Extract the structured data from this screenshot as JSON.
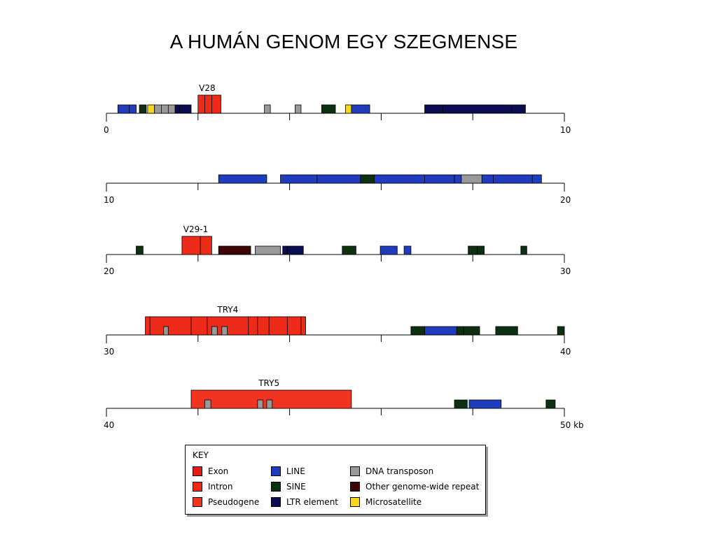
{
  "title": "A HUMÁN GENOM EGY SZEGMENSE",
  "legend": {
    "title": "KEY",
    "items": [
      {
        "key": "exon",
        "label": "Exon",
        "color": "#e01c14"
      },
      {
        "key": "line",
        "label": "LINE",
        "color": "#1f3cbf"
      },
      {
        "key": "dna",
        "label": "DNA transposon",
        "color": "#999999"
      },
      {
        "key": "intron",
        "label": "Intron",
        "color": "#ee2a18"
      },
      {
        "key": "sine",
        "label": "SINE",
        "color": "#0c3010"
      },
      {
        "key": "other",
        "label": "Other genome-wide repeat",
        "color": "#3c0606"
      },
      {
        "key": "pseudogene",
        "label": "Pseudogene",
        "color": "#f03420"
      },
      {
        "key": "ltr",
        "label": "LTR element",
        "color": "#0a0d52"
      },
      {
        "key": "micro",
        "label": "Microsatellite",
        "color": "#f5d81a"
      }
    ]
  },
  "rows": [
    {
      "start": 0,
      "end": 10,
      "end_label": "10",
      "gene": {
        "label": "V28",
        "at": 2.2
      },
      "features": [
        {
          "type": "line",
          "start": 0.25,
          "end": 0.65
        },
        {
          "type": "sine",
          "start": 0.72,
          "end": 0.87
        },
        {
          "type": "micro",
          "start": 0.9,
          "end": 1.05
        },
        {
          "type": "dna",
          "start": 1.05,
          "end": 1.5
        },
        {
          "type": "ltr",
          "start": 1.5,
          "end": 1.85
        },
        {
          "type": "intron",
          "start": 2.0,
          "end": 2.5,
          "tall": true
        },
        {
          "type": "dna",
          "start": 3.45,
          "end": 3.58
        },
        {
          "type": "dna",
          "start": 4.12,
          "end": 4.25
        },
        {
          "type": "sine",
          "start": 4.7,
          "end": 5.0
        },
        {
          "type": "micro",
          "start": 5.22,
          "end": 5.35
        },
        {
          "type": "line",
          "start": 5.35,
          "end": 5.75
        },
        {
          "type": "ltr",
          "start": 6.95,
          "end": 9.15
        }
      ],
      "dividers": [
        0.5,
        1.2,
        1.35,
        1.6,
        2.15,
        2.3,
        7.35,
        8.85
      ]
    },
    {
      "start": 10,
      "end": 20,
      "end_label": "20",
      "features": [
        {
          "type": "line",
          "start": 12.45,
          "end": 13.5
        },
        {
          "type": "line",
          "start": 13.8,
          "end": 15.55
        },
        {
          "type": "sine",
          "start": 15.55,
          "end": 15.85
        },
        {
          "type": "line",
          "start": 15.85,
          "end": 17.6
        },
        {
          "type": "line",
          "start": 17.6,
          "end": 17.75
        },
        {
          "type": "dna",
          "start": 17.75,
          "end": 18.2
        },
        {
          "type": "line",
          "start": 18.2,
          "end": 19.5
        }
      ],
      "dividers": [
        14.6,
        16.95,
        18.45,
        19.3
      ]
    },
    {
      "start": 20,
      "end": 30,
      "end_label": "30",
      "gene": {
        "label": "V29-1",
        "at": 21.95
      },
      "features": [
        {
          "type": "sine",
          "start": 20.65,
          "end": 20.8
        },
        {
          "type": "intron",
          "start": 21.65,
          "end": 22.3,
          "tall": true
        },
        {
          "type": "other",
          "start": 22.45,
          "end": 23.15
        },
        {
          "type": "dna",
          "start": 23.25,
          "end": 23.8
        },
        {
          "type": "ltr",
          "start": 23.85,
          "end": 24.3
        },
        {
          "type": "sine",
          "start": 25.15,
          "end": 25.45
        },
        {
          "type": "line",
          "start": 25.98,
          "end": 26.35
        },
        {
          "type": "line",
          "start": 26.5,
          "end": 26.65
        },
        {
          "type": "sine",
          "start": 27.9,
          "end": 28.25
        },
        {
          "type": "sine",
          "start": 29.05,
          "end": 29.18
        }
      ],
      "dividers": [
        22.05,
        23.95,
        28.1
      ]
    },
    {
      "start": 30,
      "end": 40,
      "end_label": "40",
      "gene": {
        "label": "TRY4",
        "at": 32.65
      },
      "features": [
        {
          "type": "intron",
          "start": 30.85,
          "end": 34.35,
          "tall": true
        },
        {
          "type": "sine",
          "start": 36.65,
          "end": 36.95
        },
        {
          "type": "line",
          "start": 36.95,
          "end": 37.65
        },
        {
          "type": "sine",
          "start": 37.65,
          "end": 38.15
        },
        {
          "type": "sine",
          "start": 38.5,
          "end": 38.98
        },
        {
          "type": "sine",
          "start": 39.85,
          "end": 40.0
        }
      ],
      "dividers": [
        30.95,
        31.85,
        32.2,
        33.1,
        33.3,
        33.55,
        33.95,
        34.25,
        37.8
      ],
      "inner": [
        {
          "type": "dna",
          "start": 31.25,
          "end": 31.35
        },
        {
          "type": "dna",
          "start": 32.3,
          "end": 32.42
        },
        {
          "type": "dna",
          "start": 32.52,
          "end": 32.64
        }
      ]
    },
    {
      "start": 40,
      "end": 50,
      "end_label": "50 kb",
      "gene": {
        "label": "TRY5",
        "at": 43.55
      },
      "features": [
        {
          "type": "pseudogene",
          "start": 41.85,
          "end": 45.35,
          "tall": true
        },
        {
          "type": "sine",
          "start": 47.6,
          "end": 47.88
        },
        {
          "type": "line",
          "start": 47.92,
          "end": 48.62
        },
        {
          "type": "sine",
          "start": 49.6,
          "end": 49.8
        }
      ],
      "dividers": [],
      "inner": [
        {
          "type": "dna",
          "start": 42.15,
          "end": 42.28
        },
        {
          "type": "dna",
          "start": 43.3,
          "end": 43.42
        },
        {
          "type": "dna",
          "start": 43.5,
          "end": 43.62
        }
      ]
    }
  ],
  "start_labels": [
    "0",
    "10",
    "20",
    "30",
    "40"
  ]
}
